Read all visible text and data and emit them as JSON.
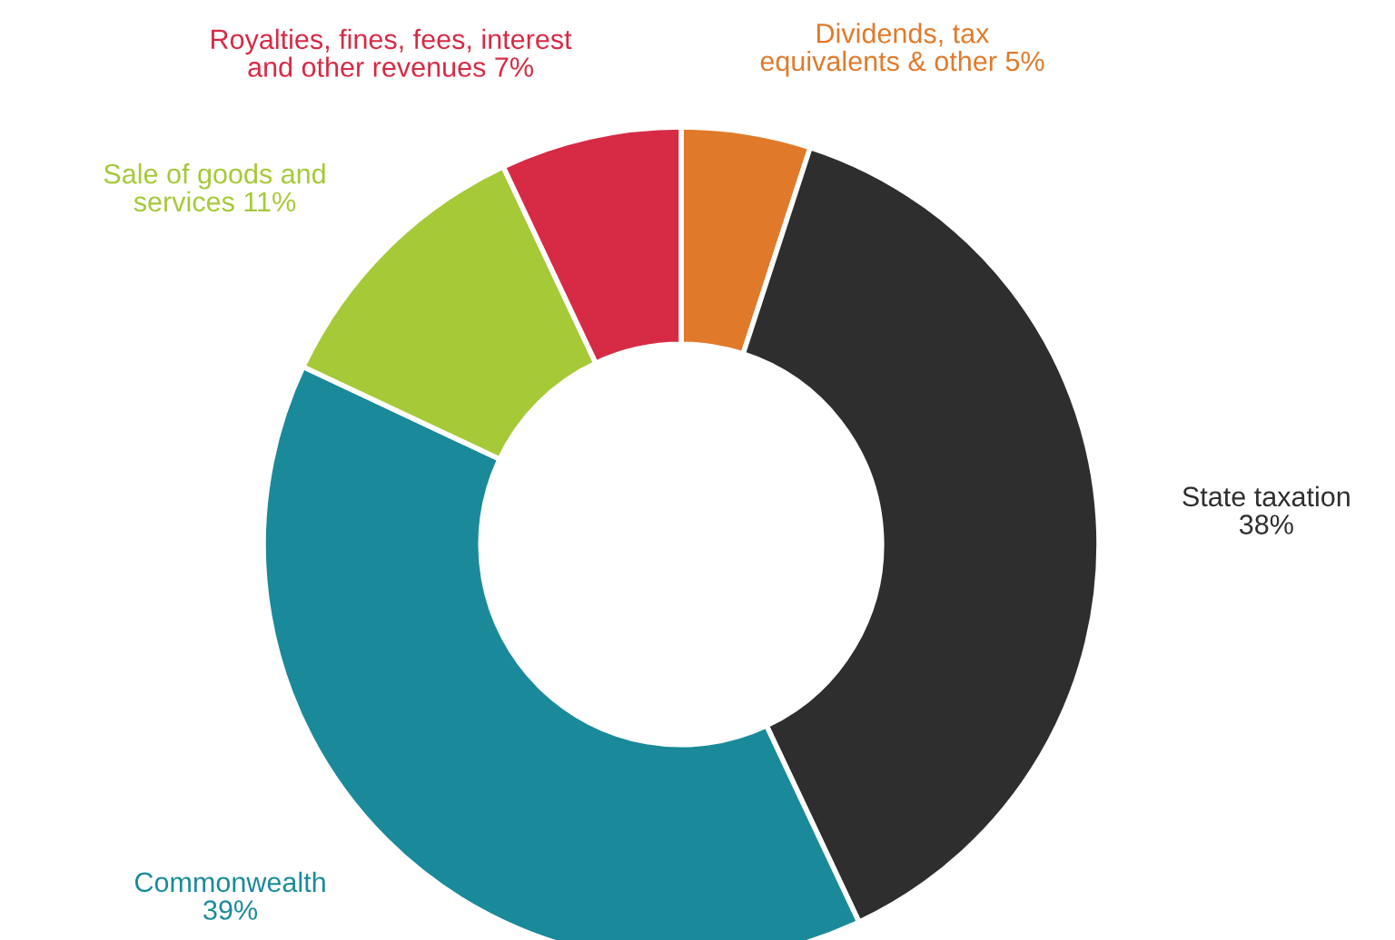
{
  "chart_data": {
    "type": "donut",
    "categories": [
      "Dividends, tax\nequivalents & other 5%",
      "State taxation\n38%",
      "Commonwealth\n39%",
      "Sale of goods and\nservices 11%",
      "Royalties, fines, fees, interest\nand other revenues 7%"
    ],
    "values": [
      5,
      38,
      39,
      11,
      7
    ],
    "colors": [
      "#e07a2a",
      "#2e2e2e",
      "#1a8a9a",
      "#a6c938",
      "#d62a45"
    ]
  }
}
